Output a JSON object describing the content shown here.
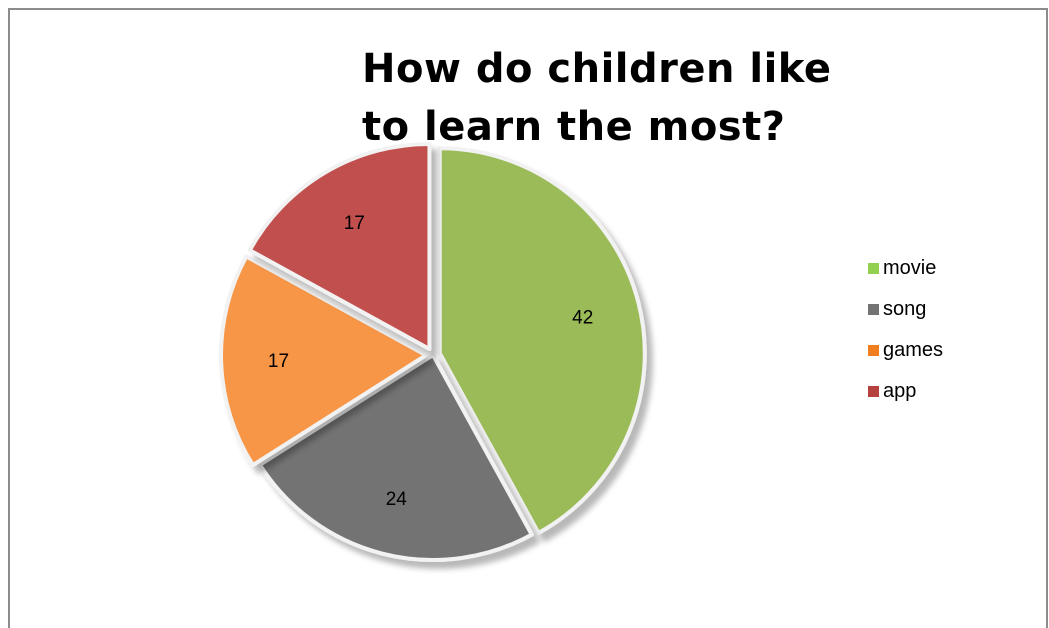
{
  "chart_data": {
    "type": "pie",
    "title": "How do children like to learn the most?",
    "categories": [
      "movie",
      "song",
      "games",
      "app"
    ],
    "values": [
      42,
      24,
      17,
      17
    ],
    "colors": [
      "#9bbb59",
      "#737373",
      "#f79646",
      "#c0504d"
    ],
    "exploded": [
      true,
      false,
      true,
      true
    ],
    "legend_position": "right",
    "data_labels": [
      "42",
      "24",
      "17",
      "17"
    ]
  },
  "legend": {
    "items": [
      {
        "label": "movie",
        "color": "#92d050"
      },
      {
        "label": "song",
        "color": "#737373"
      },
      {
        "label": "games",
        "color": "#f07e1e"
      },
      {
        "label": "app",
        "color": "#b4413f"
      }
    ]
  }
}
